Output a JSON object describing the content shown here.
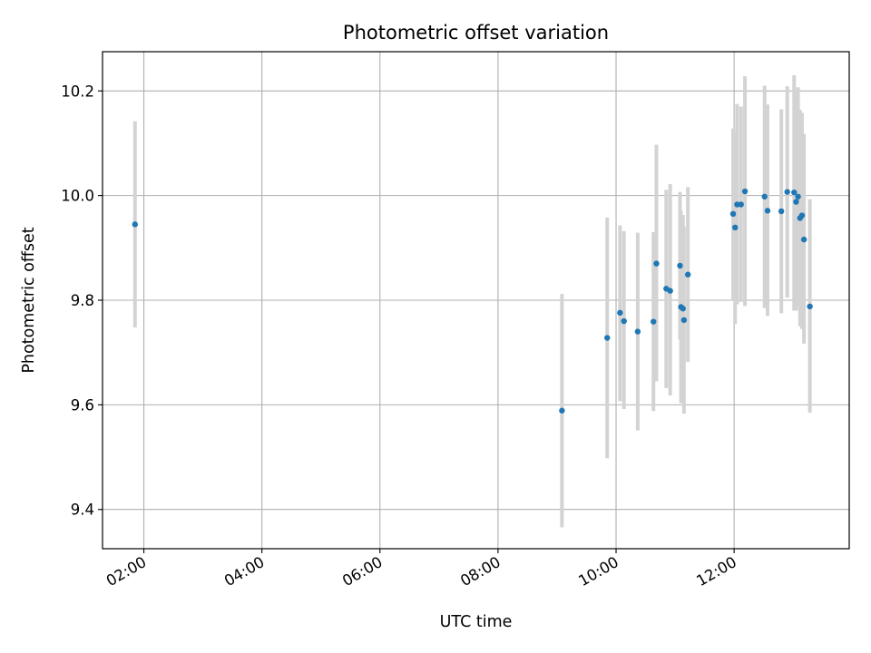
{
  "chart_data": {
    "type": "scatter",
    "title": "Photometric offset variation",
    "xlabel": "UTC time",
    "ylabel": "Photometric offset",
    "x_ticks": [
      "02:00",
      "04:00",
      "06:00",
      "08:00",
      "10:00",
      "12:00"
    ],
    "y_ticks": [
      "9.4",
      "9.6",
      "9.8",
      "10.0",
      "10.2"
    ],
    "xlim": [
      "01:18",
      "13:57"
    ],
    "ylim": [
      9.325,
      10.275
    ],
    "grid": true,
    "legend": "none",
    "point_color": "#1f77b4",
    "errorbar_color": "#d3d3d3",
    "points": [
      {
        "x": "01:51",
        "y": 9.945,
        "ylo": 9.748,
        "yhi": 10.142
      },
      {
        "x": "09:05",
        "y": 9.589,
        "ylo": 9.366,
        "yhi": 9.812
      },
      {
        "x": "09:51",
        "y": 9.728,
        "ylo": 9.498,
        "yhi": 9.958
      },
      {
        "x": "10:04",
        "y": 9.776,
        "ylo": 9.607,
        "yhi": 9.943
      },
      {
        "x": "10:08",
        "y": 9.76,
        "ylo": 9.592,
        "yhi": 9.932
      },
      {
        "x": "10:22",
        "y": 9.74,
        "ylo": 9.551,
        "yhi": 9.929
      },
      {
        "x": "10:38",
        "y": 9.759,
        "ylo": 9.588,
        "yhi": 9.93
      },
      {
        "x": "10:41",
        "y": 9.87,
        "ylo": 9.645,
        "yhi": 10.097
      },
      {
        "x": "10:51",
        "y": 9.822,
        "ylo": 9.632,
        "yhi": 10.011
      },
      {
        "x": "10:55",
        "y": 9.818,
        "ylo": 9.618,
        "yhi": 10.022
      },
      {
        "x": "11:05",
        "y": 9.866,
        "ylo": 9.725,
        "yhi": 10.007
      },
      {
        "x": "11:06",
        "y": 9.787,
        "ylo": 9.603,
        "yhi": 9.971
      },
      {
        "x": "11:08",
        "y": 9.784,
        "ylo": 9.605,
        "yhi": 9.963
      },
      {
        "x": "11:09",
        "y": 9.762,
        "ylo": 9.583,
        "yhi": 9.941
      },
      {
        "x": "11:13",
        "y": 9.849,
        "ylo": 9.682,
        "yhi": 10.016
      },
      {
        "x": "11:59",
        "y": 9.965,
        "ylo": 9.8,
        "yhi": 10.128
      },
      {
        "x": "12:01",
        "y": 9.939,
        "ylo": 9.754,
        "yhi": 10.123
      },
      {
        "x": "12:03",
        "y": 9.983,
        "ylo": 9.792,
        "yhi": 10.175
      },
      {
        "x": "12:07",
        "y": 9.983,
        "ylo": 9.797,
        "yhi": 10.17
      },
      {
        "x": "12:11",
        "y": 10.008,
        "ylo": 9.789,
        "yhi": 10.228
      },
      {
        "x": "12:31",
        "y": 9.998,
        "ylo": 9.785,
        "yhi": 10.21
      },
      {
        "x": "12:34",
        "y": 9.971,
        "ylo": 9.77,
        "yhi": 10.174
      },
      {
        "x": "12:48",
        "y": 9.97,
        "ylo": 9.775,
        "yhi": 10.165
      },
      {
        "x": "12:54",
        "y": 10.007,
        "ylo": 9.805,
        "yhi": 10.209
      },
      {
        "x": "13:01",
        "y": 10.006,
        "ylo": 9.78,
        "yhi": 10.23
      },
      {
        "x": "13:03",
        "y": 9.988,
        "ylo": 9.78,
        "yhi": 10.198
      },
      {
        "x": "13:05",
        "y": 9.998,
        "ylo": 9.788,
        "yhi": 10.207
      },
      {
        "x": "13:07",
        "y": 9.957,
        "ylo": 9.75,
        "yhi": 10.164
      },
      {
        "x": "13:09",
        "y": 9.962,
        "ylo": 9.745,
        "yhi": 10.158
      },
      {
        "x": "13:11",
        "y": 9.916,
        "ylo": 9.717,
        "yhi": 10.118
      },
      {
        "x": "13:17",
        "y": 9.788,
        "ylo": 9.585,
        "yhi": 9.993
      }
    ]
  }
}
